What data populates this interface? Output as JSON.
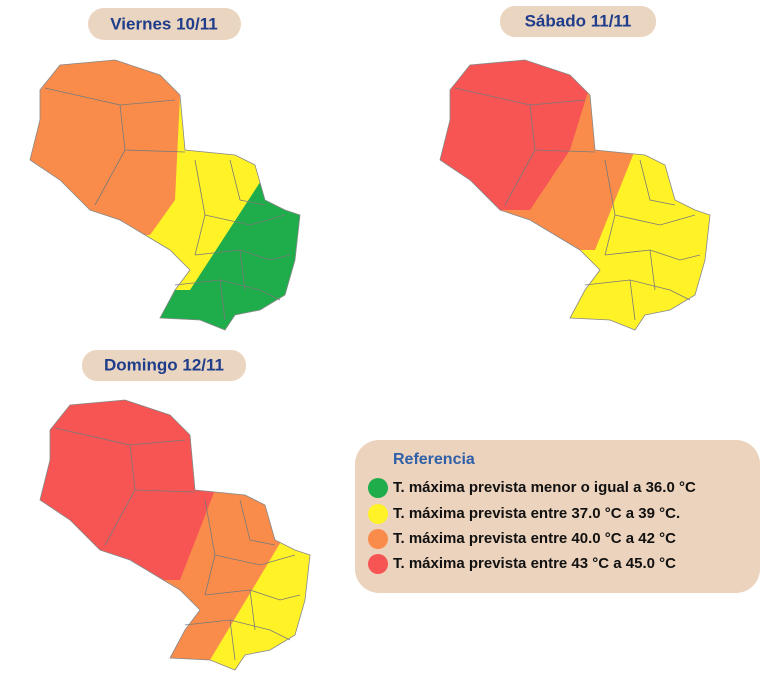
{
  "maps": [
    {
      "label": "Viernes 10/11"
    },
    {
      "label": "Sábado 11/11"
    },
    {
      "label": "Domingo 12/11"
    }
  ],
  "legend": {
    "title": "Referencia",
    "items": [
      {
        "label": "T. máxima prevista menor o igual a 36.0 °C",
        "color": "#1fad4b"
      },
      {
        "label": "T. máxima prevista entre 37.0 °C a 39 °C.",
        "color": "#fff227"
      },
      {
        "label": "T. máxima prevista entre 40.0 °C a 42 °C",
        "color": "#f98c4a"
      },
      {
        "label": "T. máxima prevista entre 43 °C a 45.0 °C",
        "color": "#f75454"
      }
    ]
  }
}
